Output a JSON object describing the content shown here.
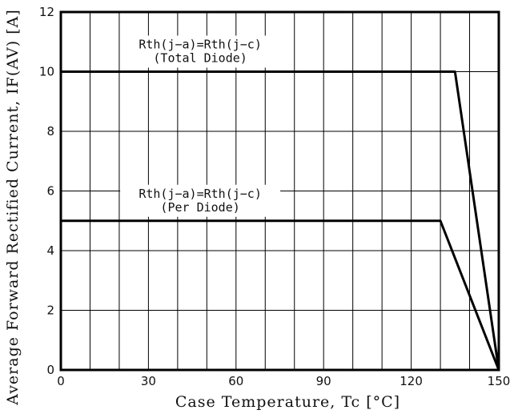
{
  "chart_data": {
    "type": "line",
    "xlabel": "Case Temperature, Tc [°C]",
    "ylabel": "Average Forward Rectified Current, IF(AV) [A]",
    "xlim": [
      0,
      150
    ],
    "ylim": [
      0,
      12
    ],
    "x_ticks": [
      "0",
      "30",
      "60",
      "90",
      "120",
      "150"
    ],
    "y_ticks": [
      "0",
      "2",
      "4",
      "6",
      "8",
      "10",
      "12"
    ],
    "grid": true,
    "series": [
      {
        "x": [
          0,
          135,
          150
        ],
        "y": [
          10,
          10,
          0
        ]
      },
      {
        "x": [
          0,
          130,
          150
        ],
        "y": [
          5,
          5,
          0
        ]
      }
    ],
    "annotations": [
      {
        "line1": "Rth(j−a)=Rth(j−c)",
        "line2": "(Total Diode)",
        "at_x": 45,
        "at_y": 10
      },
      {
        "line1": "Rth(j−a)=Rth(j−c)",
        "line2": "(Per Diode)",
        "at_x": 45,
        "at_y": 5
      }
    ]
  }
}
